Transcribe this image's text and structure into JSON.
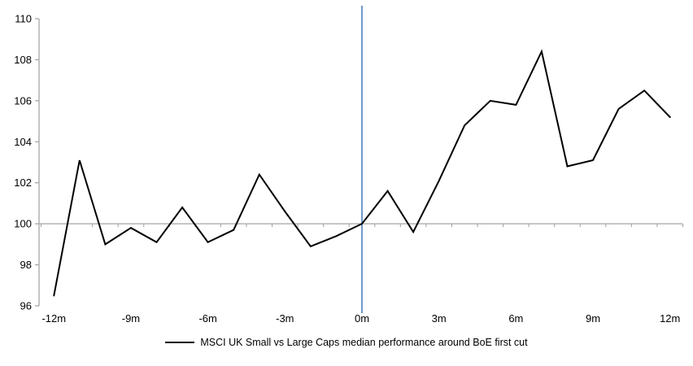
{
  "chart_data": {
    "type": "line",
    "title": "",
    "xlabel": "",
    "ylabel": "",
    "x_unit": "months relative to first cut",
    "x": [
      -12,
      -11,
      -10,
      -9,
      -8,
      -7,
      -6,
      -5,
      -4,
      -3,
      -2,
      -1,
      0,
      1,
      2,
      3,
      4,
      5,
      6,
      7,
      8,
      9,
      10,
      11,
      12
    ],
    "series": [
      {
        "name": "MSCI UK Small vs Large Caps median performance around BoE first cut",
        "color": "#000000",
        "values": [
          96.5,
          103.1,
          99.0,
          99.8,
          99.1,
          100.8,
          99.1,
          99.7,
          102.4,
          100.6,
          98.9,
          99.4,
          100.0,
          101.6,
          99.6,
          102.1,
          104.8,
          106.0,
          105.8,
          108.4,
          102.8,
          103.1,
          105.6,
          106.5,
          105.2
        ]
      }
    ],
    "ylim": [
      96,
      110
    ],
    "y_ticks": [
      96,
      98,
      100,
      102,
      104,
      106,
      108,
      110
    ],
    "x_tick_positions": [
      -12,
      -9,
      -6,
      -3,
      0,
      3,
      6,
      9,
      12
    ],
    "x_tick_labels": [
      "-12m",
      "-9m",
      "-6m",
      "-3m",
      "0m",
      "3m",
      "6m",
      "9m",
      "12m"
    ],
    "grid": "off",
    "legend_position": "bottom",
    "reference_lines": [
      {
        "orientation": "horizontal",
        "at": 100,
        "color": "#a6a6a6"
      },
      {
        "orientation": "vertical",
        "at": 0,
        "color": "#4f81bd"
      }
    ]
  },
  "colors": {
    "series_line": "#000000",
    "axis_gray": "#a6a6a6",
    "zero_line_blue": "#4f81bd",
    "text": "#000000",
    "background": "#ffffff"
  }
}
